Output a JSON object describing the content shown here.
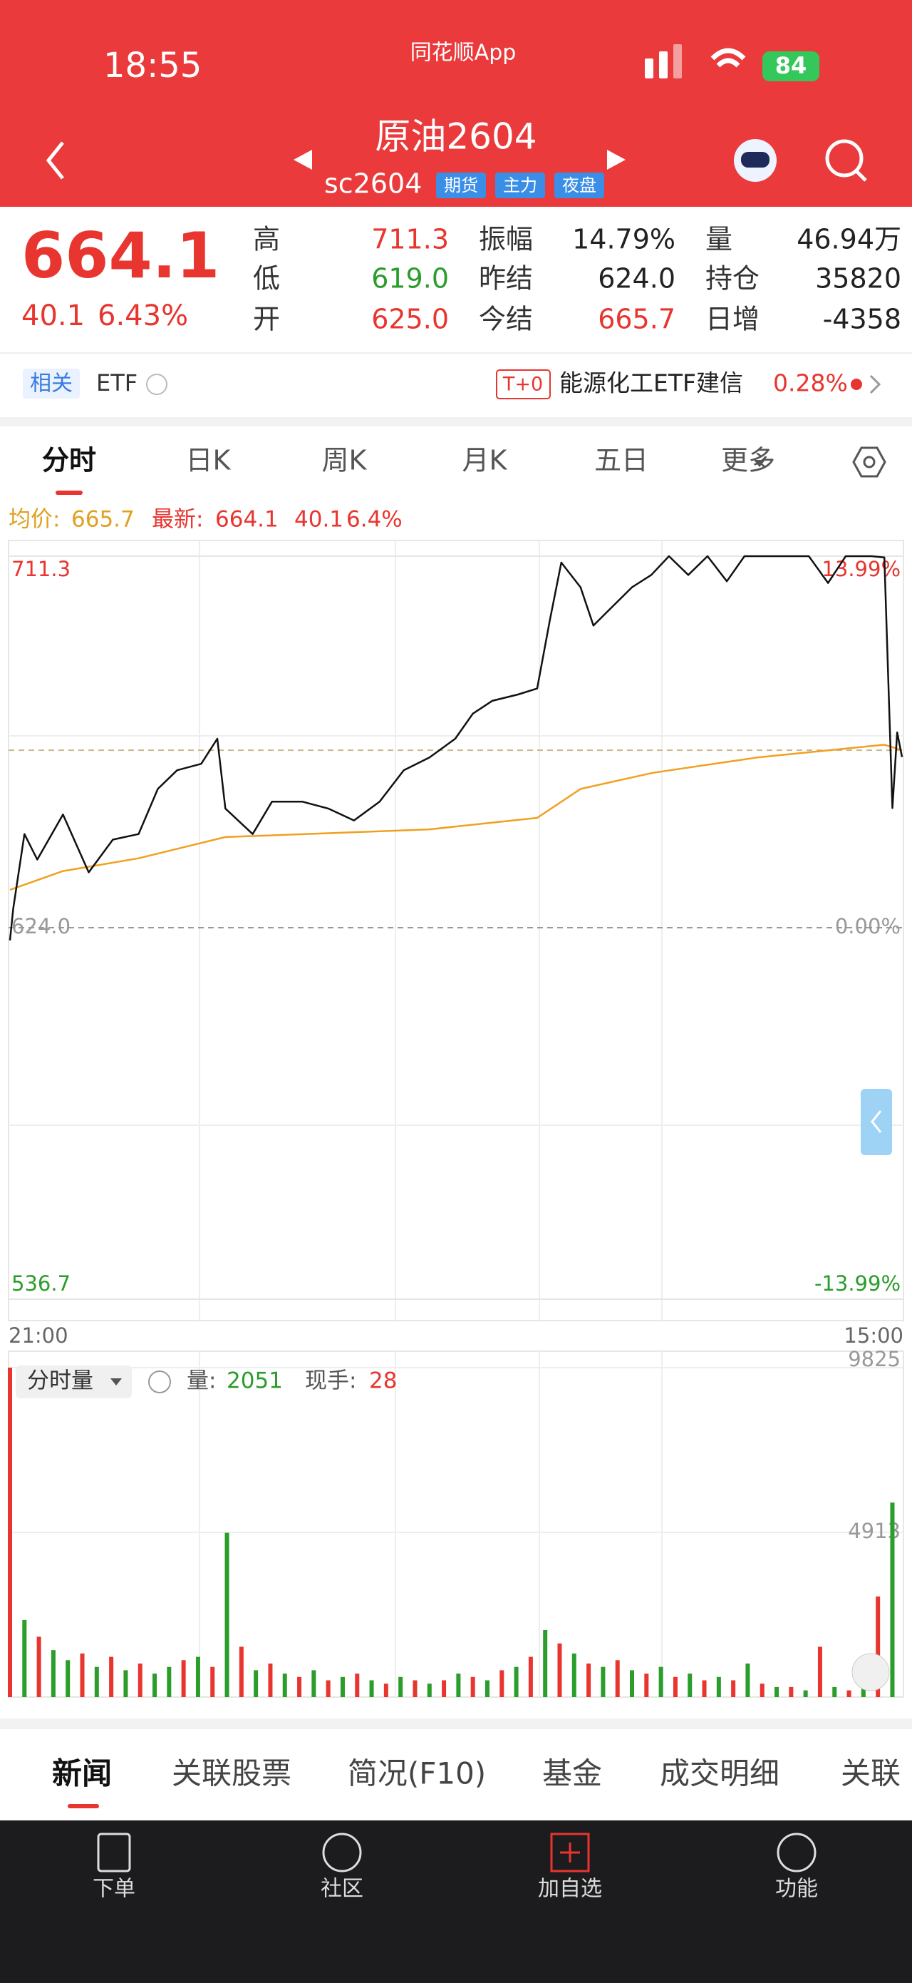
{
  "status_bar": {
    "time": "18:55",
    "app": "同花顺App",
    "battery": "84"
  },
  "header": {
    "title": "原油2604",
    "code": "sc2604",
    "badges": [
      "期货",
      "主力",
      "夜盘"
    ]
  },
  "quote": {
    "price": "664.1",
    "change": "40.1",
    "change_pct": "6.43%",
    "color": "#e8352f",
    "fields": [
      {
        "label": "高",
        "value": "711.3",
        "color": "#e8352f"
      },
      {
        "label": "振幅",
        "value": "14.79%",
        "color": "#222222"
      },
      {
        "label": "量",
        "value": "46.94万",
        "color": "#222222"
      },
      {
        "label": "低",
        "value": "619.0",
        "color": "#2a9d2a"
      },
      {
        "label": "昨结",
        "value": "624.0",
        "color": "#222222"
      },
      {
        "label": "持仓",
        "value": "35820",
        "color": "#222222"
      },
      {
        "label": "开",
        "value": "625.0",
        "color": "#e8352f"
      },
      {
        "label": "今结",
        "value": "665.7",
        "color": "#e8352f"
      },
      {
        "label": "日增",
        "value": "-4358",
        "color": "#222222"
      }
    ]
  },
  "related": {
    "label": "相关",
    "etf": "ETF",
    "t0": "T+0",
    "fund": "能源化工ETF建信",
    "fund_change": "0.28%"
  },
  "tabs": [
    "分时",
    "日K",
    "周K",
    "月K",
    "五日",
    "更多"
  ],
  "info": {
    "avg_label": "均价:",
    "avg": "665.7",
    "last_label": "最新:",
    "last": "664.1",
    "change": "40.1",
    "change_pct": "6.4%"
  },
  "volume_panel": {
    "selector": "分时量",
    "volume_label": "量:",
    "volume": "2051",
    "hand_label": "现手:",
    "hand": "28"
  },
  "bottom_tabs": [
    "新闻",
    "关联股票",
    "简况(F10)",
    "基金",
    "成交明细",
    "关联"
  ],
  "nav": [
    "下单",
    "社区",
    "加自选",
    "功能"
  ],
  "chart_data": [
    {
      "type": "line",
      "xlim": [
        0,
        555
      ],
      "xticks": [
        {
          "value": 0,
          "label": "21:00"
        },
        {
          "value": 555,
          "label": "15:00"
        }
      ],
      "ylim": [
        536.7,
        711.3
      ],
      "yticks": [
        711.3,
        {
          "value": 624,
          "label": "624.0"
        },
        536.7
      ],
      "ytick_colors": [
        "#e8352f",
        "#999999",
        "#2a9d2a"
      ],
      "y2lim": [
        -13.99,
        13.99
      ],
      "y2ticks": [
        {
          "value": 13.99,
          "label": "13.99%"
        },
        {
          "value": 0,
          "label": "0.00%"
        },
        {
          "value": -13.99,
          "label": "-13.99%"
        }
      ],
      "y2tick_colors": [
        "#e8352f",
        "#999999",
        "#2a9d2a"
      ],
      "series": [
        {
          "color": "#111111",
          "x": [
            0,
            2,
            9,
            17,
            33,
            49,
            64,
            80,
            92,
            104,
            119,
            129,
            134,
            151,
            163,
            182,
            198,
            214,
            230,
            245,
            261,
            277,
            288,
            300,
            316,
            328,
            336,
            343,
            355,
            363,
            375,
            387,
            399,
            410,
            422,
            434,
            446,
            457,
            465,
            481,
            497,
            509,
            520,
            536,
            544,
            549,
            552,
            555
          ],
          "values": [
            621.0,
            628.4,
            646.0,
            640.0,
            650.6,
            637.0,
            644.7,
            646.0,
            656.6,
            661.0,
            662.5,
            668.4,
            652.0,
            646.0,
            653.6,
            653.6,
            652.0,
            649.2,
            653.6,
            661.0,
            664.0,
            668.4,
            674.3,
            677.3,
            678.8,
            680.2,
            696.5,
            709.8,
            704.0,
            695.0,
            699.5,
            704.0,
            706.9,
            711.3,
            706.9,
            711.3,
            705.4,
            711.3,
            711.3,
            711.3,
            711.3,
            705.0,
            711.3,
            711.3,
            711.0,
            652.1,
            669.9,
            664.1
          ]
        },
        {
          "color": "#f0a020",
          "x": [
            0,
            33,
            80,
            134,
            198,
            261,
            328,
            355,
            400,
            465,
            544,
            555
          ],
          "values": [
            632.9,
            637.3,
            640.3,
            645.3,
            646.2,
            647.1,
            649.8,
            656.6,
            660.4,
            664.0,
            667.0,
            665.7
          ]
        }
      ]
    },
    {
      "type": "bar",
      "xlim": [
        0,
        555
      ],
      "ylim": [
        0,
        9825
      ],
      "yticks": [
        9825,
        4913
      ],
      "x": [
        0,
        9,
        18,
        27,
        36,
        45,
        54,
        63,
        72,
        81,
        90,
        99,
        108,
        117,
        126,
        135,
        144,
        153,
        162,
        171,
        180,
        189,
        198,
        207,
        216,
        225,
        234,
        243,
        252,
        261,
        270,
        279,
        288,
        297,
        306,
        315,
        324,
        333,
        342,
        351,
        360,
        369,
        378,
        387,
        396,
        405,
        414,
        423,
        432,
        441,
        450,
        459,
        468,
        477,
        486,
        495,
        504,
        513,
        522,
        531,
        540,
        549
      ],
      "values": [
        9825,
        2300,
        1800,
        1400,
        1100,
        1300,
        900,
        1200,
        800,
        1000,
        700,
        900,
        1100,
        1200,
        900,
        4900,
        1500,
        800,
        1000,
        700,
        600,
        800,
        500,
        600,
        700,
        500,
        400,
        600,
        500,
        400,
        500,
        700,
        600,
        500,
        800,
        900,
        1200,
        2000,
        1600,
        1300,
        1000,
        900,
        1100,
        800,
        700,
        900,
        600,
        700,
        500,
        600,
        500,
        1000,
        400,
        300,
        300,
        200,
        1500,
        300,
        200,
        400,
        3000,
        5800
      ],
      "colors": [
        "#e8352f",
        "#2a9d2a",
        "#e8352f",
        "#2a9d2a",
        "#2a9d2a",
        "#e8352f",
        "#2a9d2a",
        "#e8352f",
        "#2a9d2a",
        "#e8352f",
        "#2a9d2a",
        "#2a9d2a",
        "#e8352f",
        "#2a9d2a",
        "#e8352f",
        "#2a9d2a",
        "#e8352f",
        "#2a9d2a",
        "#e8352f",
        "#2a9d2a",
        "#e8352f",
        "#2a9d2a",
        "#e8352f",
        "#2a9d2a",
        "#e8352f",
        "#2a9d2a",
        "#e8352f",
        "#2a9d2a",
        "#e8352f",
        "#2a9d2a",
        "#e8352f",
        "#2a9d2a",
        "#e8352f",
        "#2a9d2a",
        "#e8352f",
        "#2a9d2a",
        "#e8352f",
        "#2a9d2a",
        "#e8352f",
        "#2a9d2a",
        "#e8352f",
        "#2a9d2a",
        "#e8352f",
        "#2a9d2a",
        "#e8352f",
        "#2a9d2a",
        "#e8352f",
        "#2a9d2a",
        "#e8352f",
        "#2a9d2a",
        "#e8352f",
        "#2a9d2a",
        "#e8352f",
        "#2a9d2a",
        "#e8352f",
        "#2a9d2a",
        "#e8352f",
        "#2a9d2a",
        "#e8352f",
        "#2a9d2a",
        "#e8352f",
        "#2a9d2a"
      ]
    }
  ]
}
